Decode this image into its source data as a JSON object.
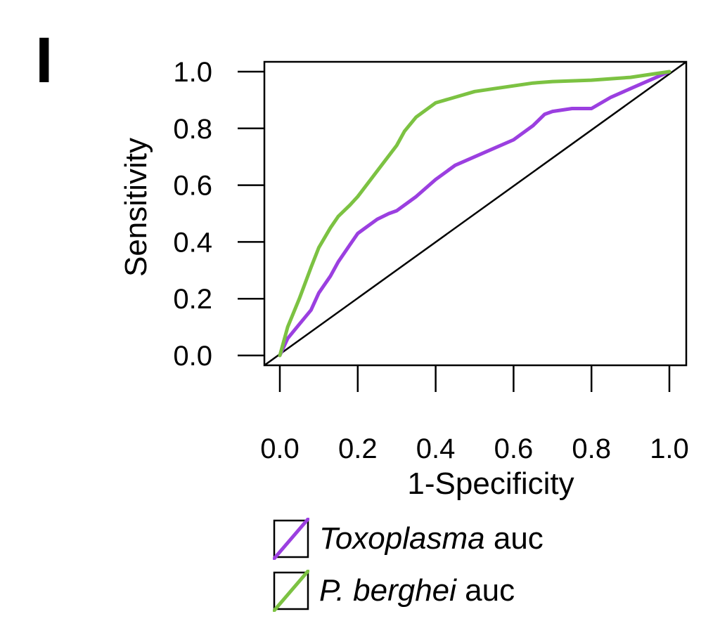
{
  "panel_label": "I",
  "colors": {
    "toxoplasma": "#9b3fe0",
    "berghei": "#7cc242",
    "diagonal": "#000000",
    "axis": "#000000"
  },
  "legend": [
    {
      "series": "Toxoplasma",
      "suffix": " auc",
      "color": "#9b3fe0"
    },
    {
      "series": "P. berghei",
      "suffix": " auc",
      "color": "#7cc242"
    }
  ],
  "chart_data": {
    "type": "line",
    "title": "",
    "xlabel": "1-Specificity",
    "ylabel": "Sensitivity",
    "xlim": [
      0,
      1
    ],
    "ylim": [
      0,
      1
    ],
    "x_ticks": [
      "0.0",
      "0.2",
      "0.4",
      "0.6",
      "0.8",
      "1.0"
    ],
    "y_ticks": [
      "0.0",
      "0.2",
      "0.4",
      "0.6",
      "0.8",
      "1.0"
    ],
    "grid": false,
    "legend_position": "bottom",
    "reference_line": {
      "x": [
        0,
        1
      ],
      "y": [
        0,
        1
      ]
    },
    "series": [
      {
        "name": "Toxoplasma",
        "color": "#9b3fe0",
        "x": [
          0.0,
          0.02,
          0.05,
          0.08,
          0.1,
          0.13,
          0.15,
          0.18,
          0.2,
          0.22,
          0.25,
          0.28,
          0.3,
          0.35,
          0.4,
          0.45,
          0.5,
          0.55,
          0.6,
          0.62,
          0.65,
          0.68,
          0.7,
          0.75,
          0.8,
          0.85,
          0.9,
          0.95,
          1.0
        ],
        "y": [
          0.0,
          0.06,
          0.11,
          0.16,
          0.22,
          0.28,
          0.33,
          0.39,
          0.43,
          0.45,
          0.48,
          0.5,
          0.51,
          0.56,
          0.62,
          0.67,
          0.7,
          0.73,
          0.76,
          0.78,
          0.81,
          0.85,
          0.86,
          0.87,
          0.87,
          0.91,
          0.94,
          0.97,
          1.0
        ]
      },
      {
        "name": "P. berghei",
        "color": "#7cc242",
        "x": [
          0.0,
          0.02,
          0.05,
          0.08,
          0.1,
          0.13,
          0.15,
          0.18,
          0.2,
          0.25,
          0.3,
          0.32,
          0.35,
          0.4,
          0.45,
          0.5,
          0.55,
          0.6,
          0.65,
          0.7,
          0.8,
          0.85,
          0.9,
          0.95,
          1.0
        ],
        "y": [
          0.0,
          0.1,
          0.2,
          0.31,
          0.38,
          0.45,
          0.49,
          0.53,
          0.56,
          0.65,
          0.74,
          0.79,
          0.84,
          0.89,
          0.91,
          0.93,
          0.94,
          0.95,
          0.96,
          0.965,
          0.97,
          0.975,
          0.98,
          0.99,
          1.0
        ]
      }
    ]
  }
}
